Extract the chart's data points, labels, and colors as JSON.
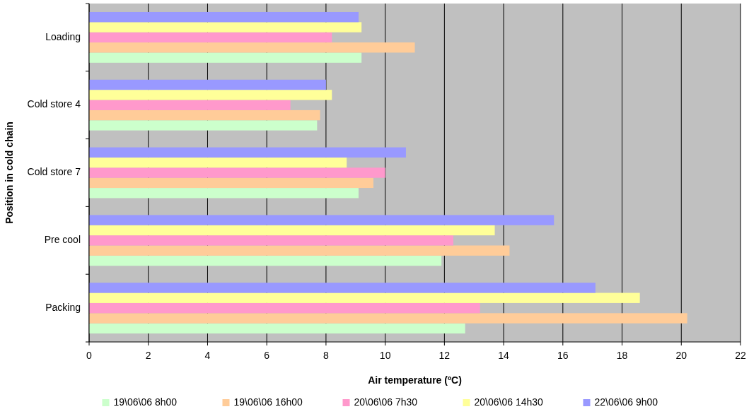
{
  "chart_data": {
    "type": "bar",
    "orientation": "horizontal",
    "xlabel": "Air temperature (ºC)",
    "ylabel": "Position in cold chain",
    "categories": [
      "Loading",
      "Cold store 4",
      "Cold store 7",
      "Pre cool",
      "Packing"
    ],
    "series": [
      {
        "name": "19\\06\\06 8h00",
        "color": "#ccffcc",
        "values": [
          9.2,
          7.7,
          9.1,
          11.9,
          12.7
        ]
      },
      {
        "name": "19\\06\\06 16h00",
        "color": "#ffcc99",
        "values": [
          11.0,
          7.8,
          9.6,
          14.2,
          20.2
        ]
      },
      {
        "name": "20\\06\\06 7h30",
        "color": "#ff99cc",
        "values": [
          8.2,
          6.8,
          10.0,
          12.3,
          13.2
        ]
      },
      {
        "name": "20\\06\\06 14h30",
        "color": "#ffff99",
        "values": [
          9.2,
          8.2,
          8.7,
          13.7,
          18.6
        ]
      },
      {
        "name": "22\\06\\06 9h00",
        "color": "#9999ff",
        "values": [
          9.1,
          8.0,
          10.7,
          15.7,
          17.1
        ]
      }
    ],
    "xlim": [
      0,
      22
    ],
    "xticks": [
      0,
      2,
      4,
      6,
      8,
      10,
      12,
      14,
      16,
      18,
      20,
      22
    ],
    "grid": "x",
    "legend": "bottom"
  }
}
